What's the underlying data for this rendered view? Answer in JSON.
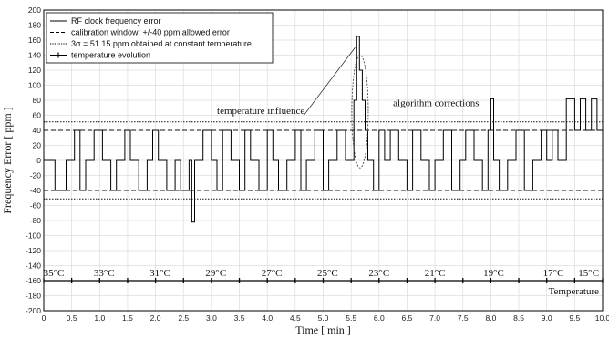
{
  "chart_data": {
    "type": "line",
    "title": "",
    "xlabel": "Time [ min ]",
    "ylabel": "Frequency Error [ ppm ]",
    "xlim": [
      0,
      10
    ],
    "ylim": [
      -200,
      200
    ],
    "x_ticks": [
      0,
      0.5,
      1,
      1.5,
      2,
      2.5,
      3,
      3.5,
      4,
      4.5,
      5,
      5.5,
      6,
      6.5,
      7,
      7.5,
      8,
      8.5,
      9,
      9.5,
      10
    ],
    "x_tick_labels": [
      "0",
      "0.5",
      "1.0",
      "1.5",
      "2.0",
      "2.5",
      "3.0",
      "3.5",
      "4.0",
      "4.5",
      "5.0",
      "5.5",
      "6.0",
      "6.5",
      "7.0",
      "7.5",
      "8.0",
      "8.5",
      "9.0",
      "9.5",
      "10.0"
    ],
    "y_ticks": [
      -200,
      -180,
      -160,
      -140,
      -120,
      -100,
      -80,
      -60,
      -40,
      -20,
      0,
      20,
      40,
      60,
      80,
      100,
      120,
      140,
      160,
      180,
      200
    ],
    "y_tick_labels": [
      "-200",
      "-180",
      "-160",
      "-140",
      "-120",
      "-100",
      "-80",
      "-60",
      "-40",
      "-20",
      "0",
      "20",
      "40",
      "60",
      "80",
      "100",
      "120",
      "140",
      "160",
      "180",
      "200"
    ],
    "grid": true,
    "legend_position": "top-left",
    "legend": [
      {
        "label": "RF clock frequency error",
        "style": "solid"
      },
      {
        "label": "calibration window: +/-40 ppm allowed error",
        "style": "dashed"
      },
      {
        "label": "3σ = 51.15 ppm obtained at constant temperature",
        "style": "dotted"
      },
      {
        "label": "temperature evolution",
        "style": "solid-marker"
      }
    ],
    "reference_lines": [
      {
        "name": "calibration-upper",
        "y": 40,
        "style": "dashed"
      },
      {
        "name": "calibration-lower",
        "y": -40,
        "style": "dashed"
      },
      {
        "name": "sigma-upper",
        "y": 51.15,
        "style": "dotted"
      },
      {
        "name": "sigma-lower",
        "y": -51.15,
        "style": "dotted"
      }
    ],
    "series": [
      {
        "name": "RF clock frequency error",
        "x": [
          0.0,
          0.2,
          0.4,
          0.55,
          0.65,
          0.75,
          0.9,
          1.05,
          1.2,
          1.3,
          1.45,
          1.55,
          1.7,
          1.85,
          1.95,
          2.05,
          2.2,
          2.35,
          2.45,
          2.6,
          2.65,
          2.7,
          2.85,
          3.0,
          3.1,
          3.2,
          3.35,
          3.5,
          3.6,
          3.7,
          3.85,
          4.0,
          4.1,
          4.2,
          4.35,
          4.5,
          4.6,
          4.7,
          4.85,
          5.0,
          5.1,
          5.25,
          5.4,
          5.55,
          5.6,
          5.65,
          5.7,
          5.75,
          5.8,
          5.9,
          6.0,
          6.1,
          6.2,
          6.35,
          6.5,
          6.6,
          6.75,
          6.9,
          7.0,
          7.15,
          7.3,
          7.45,
          7.55,
          7.7,
          7.85,
          7.95,
          8.0,
          8.05,
          8.15,
          8.3,
          8.45,
          8.6,
          8.75,
          8.9,
          9.0,
          9.1,
          9.2,
          9.35,
          9.5,
          9.6,
          9.7,
          9.8,
          9.9,
          10.0
        ],
        "y": [
          0,
          -40,
          0,
          40,
          -40,
          0,
          40,
          0,
          -40,
          0,
          40,
          0,
          -40,
          0,
          40,
          0,
          -40,
          0,
          -40,
          0,
          -82,
          0,
          40,
          0,
          -40,
          40,
          0,
          -40,
          40,
          0,
          -40,
          40,
          0,
          -40,
          0,
          40,
          -40,
          0,
          40,
          -40,
          0,
          40,
          0,
          80,
          165,
          120,
          80,
          40,
          0,
          -40,
          40,
          0,
          40,
          0,
          -40,
          40,
          0,
          -40,
          0,
          40,
          -40,
          0,
          40,
          0,
          -40,
          40,
          82,
          0,
          -40,
          0,
          40,
          -40,
          0,
          40,
          0,
          40,
          0,
          82,
          40,
          82,
          40,
          82,
          40,
          40
        ]
      }
    ],
    "temperature_evolution": {
      "name": "temperature evolution",
      "y": -160,
      "labels": [
        "35°C",
        "33°C",
        "31°C",
        "29°C",
        "27°C",
        "25°C",
        "23°C",
        "21°C",
        "19°C",
        "17°C",
        "15°C"
      ],
      "label_x": [
        0.18,
        1.08,
        2.08,
        3.08,
        4.08,
        5.08,
        6.0,
        7.0,
        8.05,
        9.12,
        9.75
      ],
      "marker_x": [
        0,
        0.5,
        1,
        1.5,
        2,
        2.5,
        3,
        3.5,
        4,
        4.5,
        5,
        5.5,
        6,
        6.5,
        7,
        7.5,
        8,
        8.5,
        9,
        9.5,
        10
      ],
      "end_label": "Temperature"
    },
    "annotations": [
      {
        "text": "temperature influence",
        "x": 3.1,
        "y": 62,
        "target_x": 5.57,
        "target_y": 150
      },
      {
        "text": "algorithm corrections",
        "x": 6.25,
        "y": 72,
        "target_x": 5.72,
        "target_y": 70
      }
    ]
  }
}
